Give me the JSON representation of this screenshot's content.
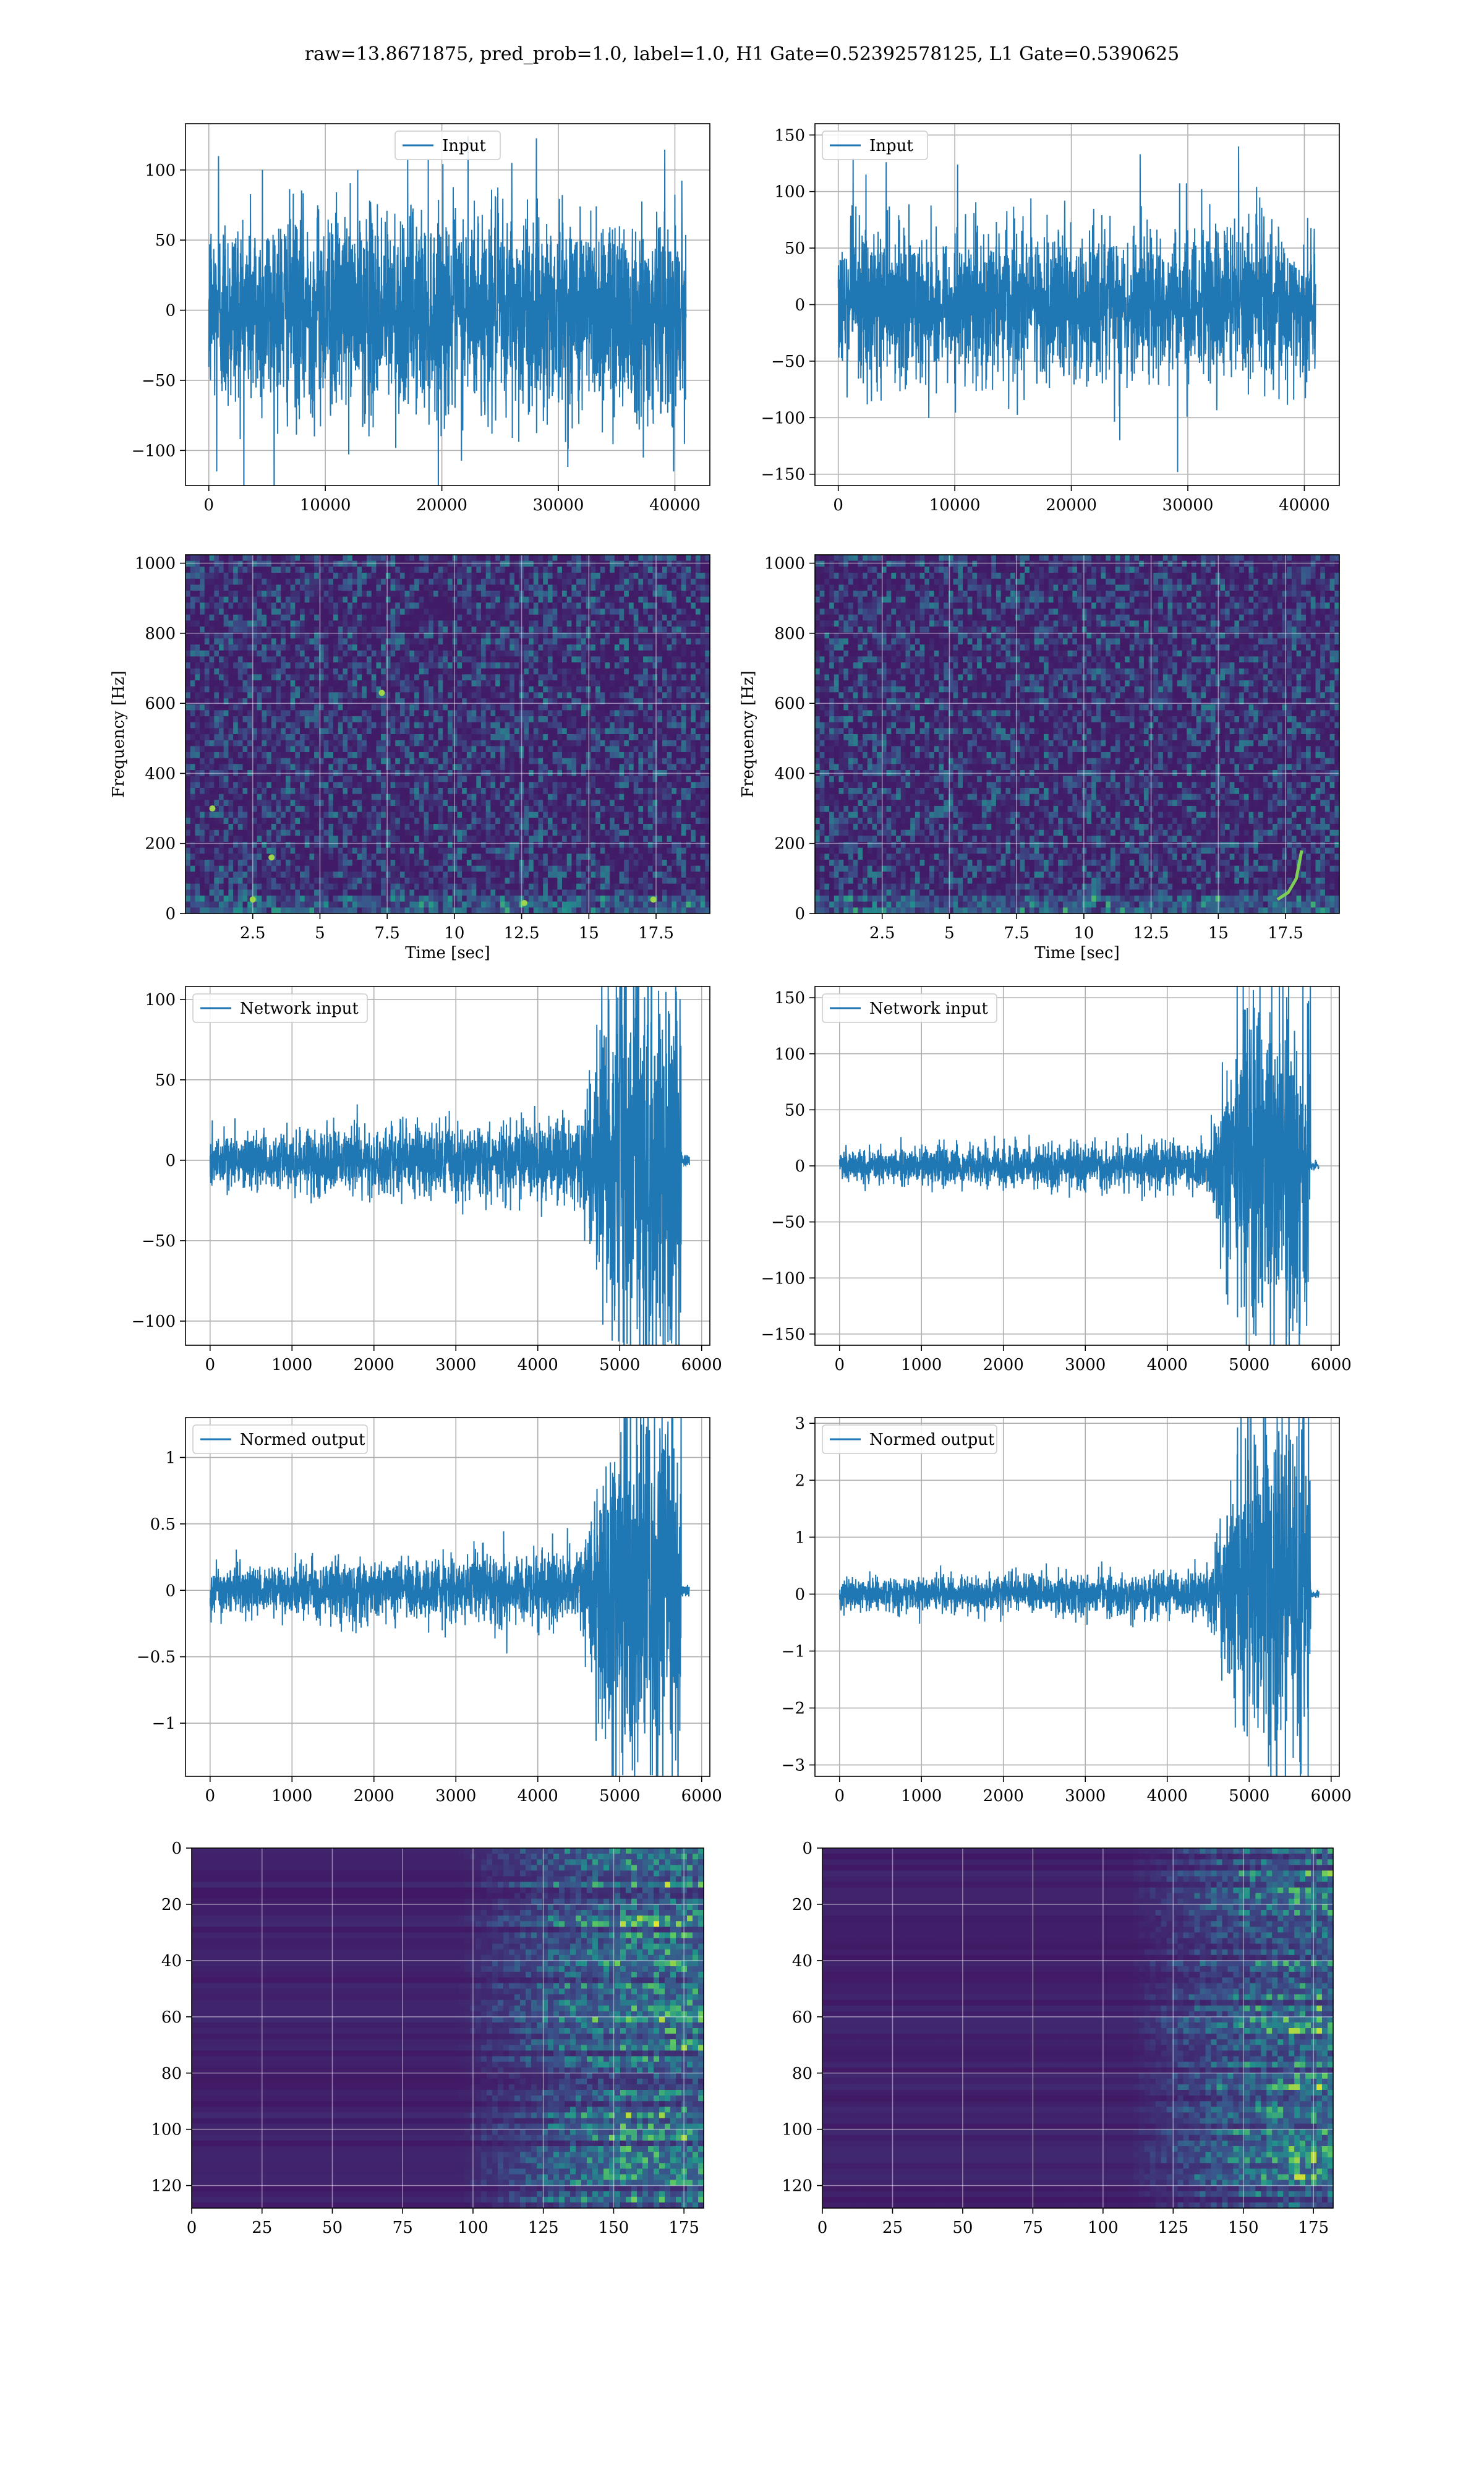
{
  "figure": {
    "title": "raw=13.8671875, pred_prob=1.0, label=1.0, H1 Gate=0.52392578125, L1 Gate=0.5390625"
  },
  "chart_data": [
    {
      "id": "h1-input",
      "type": "line",
      "legend": "Input",
      "legend_loc": "upper center",
      "grid": true,
      "xlim": [
        -2000,
        43000
      ],
      "ylim": [
        -125,
        133
      ],
      "xticks": [
        0,
        10000,
        20000,
        30000,
        40000
      ],
      "yticks": [
        -100,
        -50,
        0,
        50,
        100
      ],
      "series": [
        {
          "color": "#1f77b4",
          "x_range": [
            0,
            40960
          ],
          "envelope_mode": "noise",
          "amp": 65,
          "spikes": [
            110,
            -115,
            124,
            105,
            -105,
            100
          ],
          "values": "dense noise, approx ±65 with peaks to 124 and -115"
        }
      ]
    },
    {
      "id": "l1-input",
      "type": "line",
      "legend": "Input",
      "legend_loc": "upper left",
      "grid": true,
      "xlim": [
        -2000,
        43000
      ],
      "ylim": [
        -160,
        160
      ],
      "xticks": [
        0,
        10000,
        20000,
        30000,
        40000
      ],
      "yticks": [
        -150,
        -100,
        -50,
        0,
        50,
        100,
        150
      ],
      "series": [
        {
          "color": "#1f77b4",
          "x_range": [
            0,
            40960
          ],
          "envelope_mode": "noise",
          "amp": 60,
          "spikes": [
            140,
            -148,
            133,
            -120,
            115
          ],
          "values": "dense noise, approx ±60 with peaks to 140 and -148"
        }
      ]
    },
    {
      "id": "h1-spectrogram",
      "type": "heatmap",
      "grid": true,
      "xlabel": "Time [sec]",
      "ylabel": "Frequency [Hz]",
      "xlim": [
        0,
        19.5
      ],
      "ylim": [
        0,
        1024
      ],
      "xticks": [
        2.5,
        5.0,
        7.5,
        10.0,
        12.5,
        15.0,
        17.5
      ],
      "yticks": [
        0,
        200,
        400,
        600,
        800,
        1000
      ],
      "colormap": "viridis",
      "hotspots": [
        [
          2.5,
          40
        ],
        [
          7.3,
          630
        ],
        [
          12.6,
          30
        ],
        [
          17.4,
          40
        ],
        [
          3.2,
          160
        ],
        [
          1.0,
          300
        ]
      ]
    },
    {
      "id": "l1-spectrogram",
      "type": "heatmap",
      "grid": true,
      "xlabel": "Time [sec]",
      "ylabel": "Frequency [Hz]",
      "xlim": [
        0,
        19.5
      ],
      "ylim": [
        0,
        1024
      ],
      "xticks": [
        2.5,
        5.0,
        7.5,
        10.0,
        12.5,
        15.0,
        17.5
      ],
      "yticks": [
        0,
        200,
        400,
        600,
        800,
        1000
      ],
      "colormap": "viridis",
      "chirp": [
        [
          17.2,
          40
        ],
        [
          17.6,
          60
        ],
        [
          17.9,
          100
        ],
        [
          18.1,
          180
        ]
      ]
    },
    {
      "id": "h1-network-input",
      "type": "line",
      "legend": "Network input",
      "legend_loc": "upper left",
      "grid": true,
      "xlim": [
        -300,
        6100
      ],
      "ylim": [
        -115,
        108
      ],
      "xticks": [
        0,
        1000,
        2000,
        3000,
        4000,
        5000,
        6000
      ],
      "yticks": [
        -100,
        -50,
        0,
        50,
        100
      ],
      "series": [
        {
          "color": "#1f77b4",
          "x_range": [
            0,
            5850
          ],
          "envelope_mode": "chirp",
          "base_amp": 18,
          "peak_amp": 90,
          "rise_start": 4500,
          "end_signal": 5750,
          "spikes": [
            100,
            -105
          ]
        }
      ]
    },
    {
      "id": "l1-network-input",
      "type": "line",
      "legend": "Network input",
      "legend_loc": "upper left",
      "grid": true,
      "xlim": [
        -300,
        6100
      ],
      "ylim": [
        -160,
        160
      ],
      "xticks": [
        0,
        1000,
        2000,
        3000,
        4000,
        5000,
        6000
      ],
      "yticks": [
        -150,
        -100,
        -50,
        0,
        50,
        100,
        150
      ],
      "series": [
        {
          "color": "#1f77b4",
          "x_range": [
            0,
            5850
          ],
          "envelope_mode": "chirp",
          "base_amp": 16,
          "peak_amp": 110,
          "rise_start": 4500,
          "end_signal": 5750,
          "spikes": [
            141,
            -150
          ]
        }
      ]
    },
    {
      "id": "h1-normed-output",
      "type": "line",
      "legend": "Normed output",
      "legend_loc": "upper left",
      "grid": true,
      "xlim": [
        -300,
        6100
      ],
      "ylim": [
        -1.4,
        1.3
      ],
      "xticks": [
        0,
        1000,
        2000,
        3000,
        4000,
        5000,
        6000
      ],
      "yticks": [
        -1.0,
        -0.5,
        0.0,
        0.5,
        1.0
      ],
      "series": [
        {
          "color": "#1f77b4",
          "x_range": [
            0,
            5850
          ],
          "envelope_mode": "chirp",
          "base_amp": 0.2,
          "peak_amp": 0.95,
          "rise_start": 4500,
          "end_signal": 5750,
          "spikes": [
            1.2,
            -1.05
          ]
        }
      ]
    },
    {
      "id": "l1-normed-output",
      "type": "line",
      "legend": "Normed output",
      "legend_loc": "upper left",
      "grid": true,
      "xlim": [
        -300,
        6100
      ],
      "ylim": [
        -3.2,
        3.1
      ],
      "xticks": [
        0,
        1000,
        2000,
        3000,
        4000,
        5000,
        6000
      ],
      "yticks": [
        -3,
        -2,
        -1,
        0,
        1,
        2,
        3
      ],
      "series": [
        {
          "color": "#1f77b4",
          "x_range": [
            0,
            5850
          ],
          "envelope_mode": "chirp",
          "base_amp": 0.3,
          "peak_amp": 2.2,
          "rise_start": 4500,
          "end_signal": 5750,
          "spikes": [
            2.8,
            -2.95
          ]
        }
      ]
    },
    {
      "id": "h1-features",
      "type": "heatmap",
      "grid": true,
      "xlim": [
        0,
        182
      ],
      "ylim": [
        128,
        0
      ],
      "xticks": [
        0,
        25,
        50,
        75,
        100,
        125,
        150,
        175
      ],
      "yticks": [
        0,
        20,
        40,
        60,
        80,
        100,
        120
      ],
      "colormap": "viridis",
      "activity_start": 95
    },
    {
      "id": "l1-features",
      "type": "heatmap",
      "grid": true,
      "xlim": [
        0,
        182
      ],
      "ylim": [
        128,
        0
      ],
      "xticks": [
        0,
        25,
        50,
        75,
        100,
        125,
        150,
        175
      ],
      "yticks": [
        0,
        20,
        40,
        60,
        80,
        100,
        120
      ],
      "colormap": "viridis",
      "activity_start": 110
    }
  ]
}
